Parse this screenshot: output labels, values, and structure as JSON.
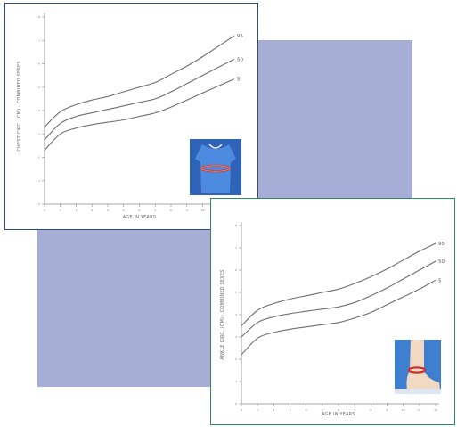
{
  "colors": {
    "block": "#a7aed6",
    "chest_border": "#2b4c93",
    "ankle_border": "#2e8a5c",
    "curve": "#6e6e6e"
  },
  "chart_data": [
    {
      "name": "chest",
      "type": "line",
      "ylabel": "CHEST CIRC. (CM) - COMBINED SEXES",
      "xlabel": "AGE IN YEARS",
      "x": [
        0,
        1,
        2,
        3,
        4,
        5,
        6,
        7,
        8,
        9,
        10,
        11,
        12
      ],
      "xlim": [
        0,
        12
      ],
      "ylim": [
        0,
        8
      ],
      "series": [
        {
          "name": "95",
          "values": [
            3.3,
            3.95,
            4.25,
            4.45,
            4.6,
            4.8,
            5.0,
            5.2,
            5.55,
            5.9,
            6.3,
            6.75,
            7.2
          ]
        },
        {
          "name": "50",
          "values": [
            2.75,
            3.45,
            3.75,
            3.9,
            4.05,
            4.2,
            4.35,
            4.5,
            4.8,
            5.15,
            5.5,
            5.85,
            6.2
          ]
        },
        {
          "name": "5",
          "values": [
            2.3,
            3.0,
            3.25,
            3.4,
            3.5,
            3.6,
            3.75,
            3.9,
            4.15,
            4.45,
            4.75,
            5.05,
            5.35
          ]
        }
      ],
      "icon": "chest-measure-icon"
    },
    {
      "name": "ankle",
      "type": "line",
      "ylabel": "ANKLE CIRC. (CM) - COMBINED SEXES",
      "xlabel": "AGE IN YEARS",
      "x": [
        0,
        1,
        2,
        3,
        4,
        5,
        6,
        7,
        8,
        9,
        10,
        11,
        12
      ],
      "xlim": [
        0,
        12
      ],
      "ylim": [
        0,
        8
      ],
      "series": [
        {
          "name": "95",
          "values": [
            3.5,
            4.2,
            4.5,
            4.7,
            4.85,
            5.0,
            5.15,
            5.4,
            5.7,
            6.05,
            6.45,
            6.85,
            7.2
          ]
        },
        {
          "name": "50",
          "values": [
            3.0,
            3.65,
            3.9,
            4.05,
            4.15,
            4.25,
            4.35,
            4.55,
            4.85,
            5.2,
            5.6,
            6.0,
            6.4
          ]
        },
        {
          "name": "5",
          "values": [
            2.2,
            2.95,
            3.2,
            3.35,
            3.45,
            3.55,
            3.65,
            3.85,
            4.1,
            4.45,
            4.8,
            5.15,
            5.55
          ]
        }
      ],
      "icon": "ankle-measure-icon"
    }
  ]
}
